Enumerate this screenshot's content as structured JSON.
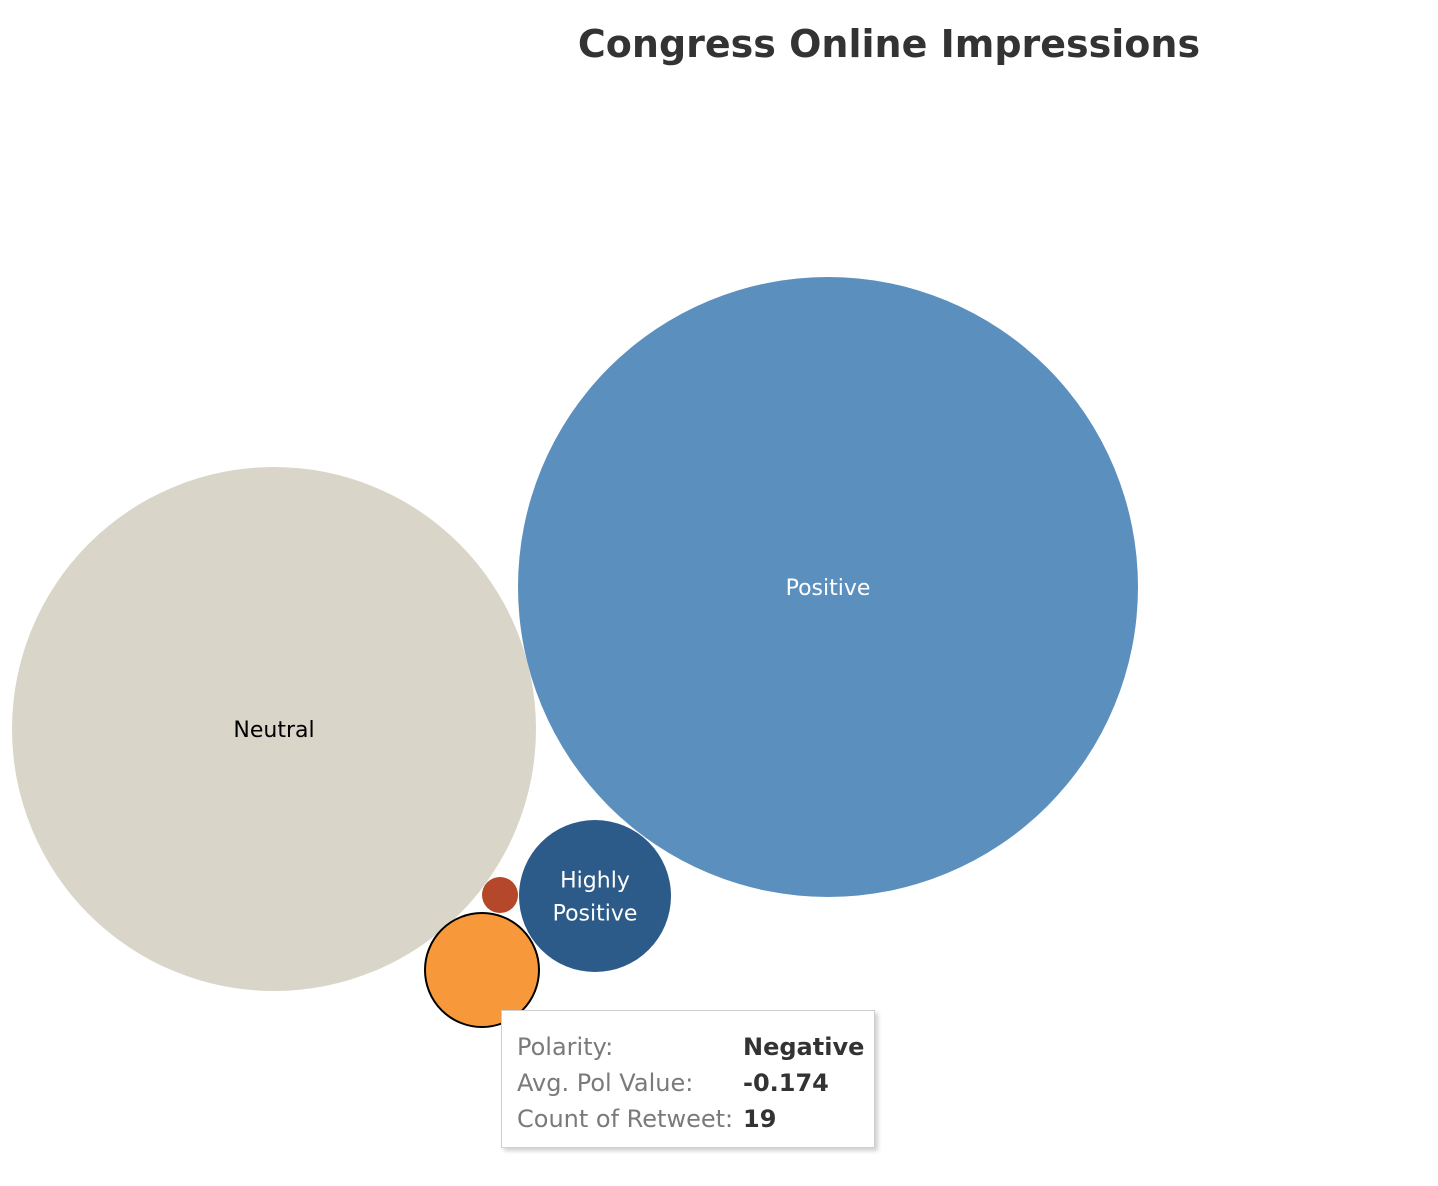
{
  "chart_data": {
    "type": "bubble",
    "title": "Congress Online Impressions",
    "size_measure": "Count of Retweet",
    "bubbles": [
      {
        "label": "Positive",
        "polarity": "Positive",
        "color": "#5b8fbe",
        "label_color": "#ffffff",
        "stroke": ""
      },
      {
        "label": "Neutral",
        "polarity": "Neutral",
        "color": "#d9d5c9",
        "label_color": "#000000",
        "stroke": ""
      },
      {
        "label": "Highly\nPositive",
        "polarity": "Highly Positive",
        "color": "#2d5b89",
        "label_color": "#ffffff",
        "stroke": ""
      },
      {
        "label": "",
        "polarity": "Negative",
        "count_of_retweet": 19,
        "avg_pol_value": -0.174,
        "color": "#f7993a",
        "label_color": "#000000",
        "stroke": "#000000"
      },
      {
        "label": "",
        "polarity": "",
        "color": "#b5472a",
        "label_color": "#ffffff",
        "stroke": ""
      }
    ]
  },
  "tooltip": {
    "rows": [
      {
        "key": "Polarity:",
        "value": "Negative"
      },
      {
        "key": "Avg. Pol Value:",
        "value": "-0.174"
      },
      {
        "key": "Count of Retweet:",
        "value": "19"
      }
    ]
  }
}
